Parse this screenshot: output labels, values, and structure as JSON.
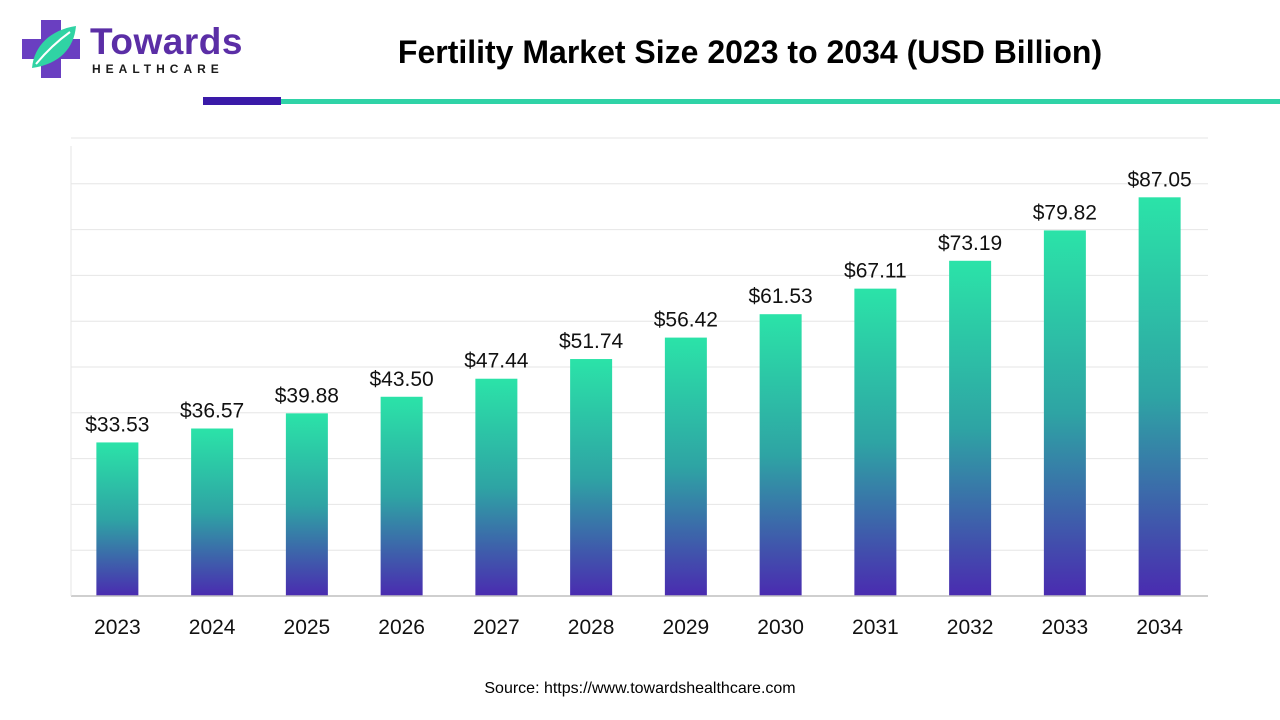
{
  "header": {
    "logo_word": "Towards",
    "logo_sub": "HEALTHCARE",
    "title": "Fertility Market Size 2023 to 2034 (USD Billion)"
  },
  "colors": {
    "brand_purple": "#5b2ea6",
    "rule_dark": "#3a1aa8",
    "rule_teal": "#2fd3a7",
    "bar_top": "#2be3a8",
    "bar_bottom": "#4a2bb0",
    "grid": "#e6e6e6",
    "axis": "#bfbfbf"
  },
  "chart_data": {
    "type": "bar",
    "categories": [
      "2023",
      "2024",
      "2025",
      "2026",
      "2027",
      "2028",
      "2029",
      "2030",
      "2031",
      "2032",
      "2033",
      "2034"
    ],
    "values": [
      33.53,
      36.57,
      39.88,
      43.5,
      47.44,
      51.74,
      56.42,
      61.53,
      67.11,
      73.19,
      79.82,
      87.05
    ],
    "value_labels": [
      "$33.53",
      "$36.57",
      "$39.88",
      "$43.50",
      "$47.44",
      "$51.74",
      "$56.42",
      "$61.53",
      "$67.11",
      "$73.19",
      "$79.82",
      "$87.05"
    ],
    "title": "Fertility Market Size 2023 to 2034 (USD Billion)",
    "xlabel": "",
    "ylabel": "",
    "ylim": [
      0,
      100
    ],
    "grid": true,
    "legend": "none"
  },
  "footer": {
    "source": "Source: https://www.towardshealthcare.com"
  }
}
